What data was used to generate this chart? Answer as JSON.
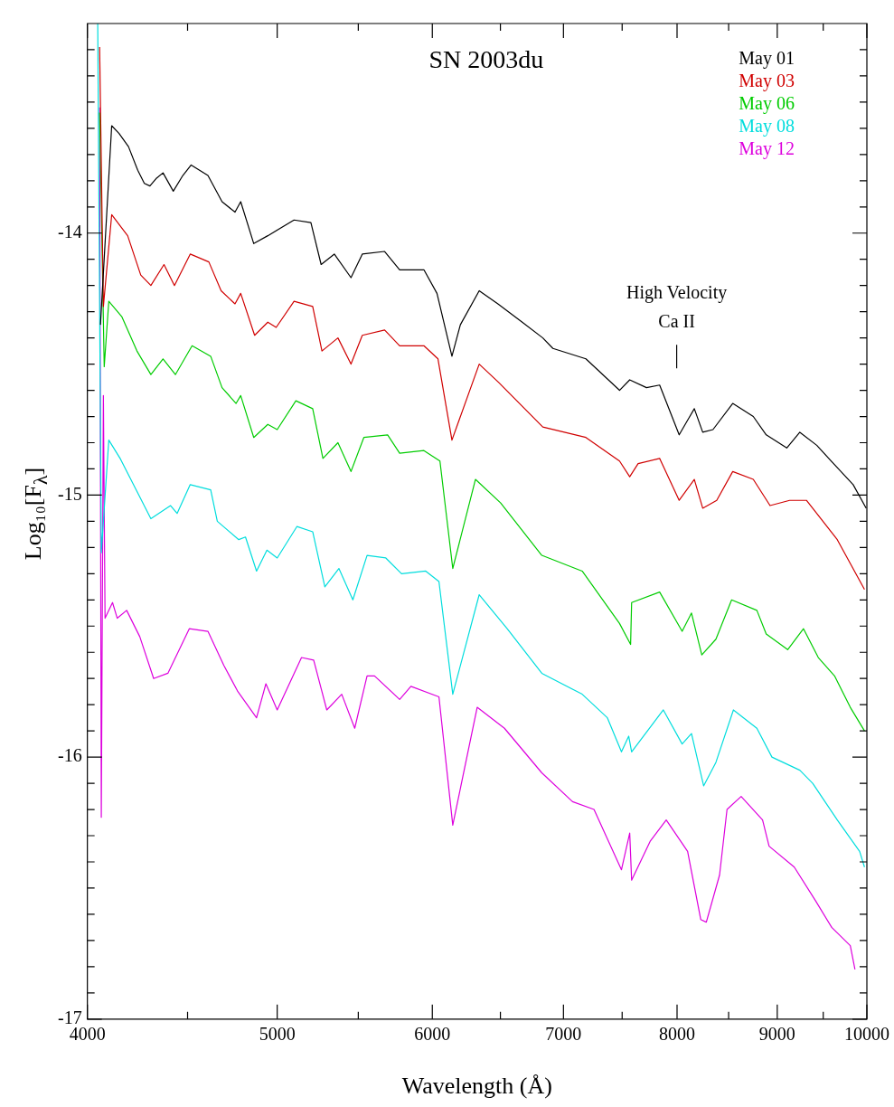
{
  "chart_data": {
    "type": "line",
    "title": "SN 2003du",
    "xlabel": "Wavelength (Å)",
    "ylabel": "Log₁₀[F$_{λ}$]",
    "log": "x",
    "legend": "top right",
    "xlim": [
      4000,
      10000
    ],
    "ylim": [
      -17,
      -13.2
    ],
    "xticks": [
      4000,
      {
        "value": 4500,
        "label": null
      },
      5000,
      {
        "value": 5500,
        "label": null
      },
      6000,
      {
        "value": 6500,
        "label": null
      },
      7000,
      {
        "value": 7500,
        "label": null
      },
      8000,
      {
        "value": 8500,
        "label": null
      },
      9000,
      {
        "value": 9500,
        "label": null
      },
      10000
    ],
    "yticks": [
      -17,
      {
        "value": -16.9,
        "label": null
      },
      {
        "value": -16.8,
        "label": null
      },
      {
        "value": -16.7,
        "label": null
      },
      {
        "value": -16.6,
        "label": null
      },
      {
        "value": -16.5,
        "label": null
      },
      {
        "value": -16.4,
        "label": null
      },
      {
        "value": -16.3,
        "label": null
      },
      {
        "value": -16.2,
        "label": null
      },
      {
        "value": -16.1,
        "label": null
      },
      -16,
      {
        "value": -15.9,
        "label": null
      },
      {
        "value": -15.8,
        "label": null
      },
      {
        "value": -15.7,
        "label": null
      },
      {
        "value": -15.6,
        "label": null
      },
      {
        "value": -15.5,
        "label": null
      },
      {
        "value": -15.4,
        "label": null
      },
      {
        "value": -15.3,
        "label": null
      },
      {
        "value": -15.2,
        "label": null
      },
      {
        "value": -15.1,
        "label": null
      },
      -15,
      {
        "value": -14.9,
        "label": null
      },
      {
        "value": -14.8,
        "label": null
      },
      {
        "value": -14.7,
        "label": null
      },
      {
        "value": -14.6,
        "label": null
      },
      {
        "value": -14.5,
        "label": null
      },
      {
        "value": -14.4,
        "label": null
      },
      {
        "value": -14.3,
        "label": null
      },
      {
        "value": -14.2,
        "label": null
      },
      {
        "value": -14.1,
        "label": null
      },
      -14,
      {
        "value": -13.9,
        "label": null
      },
      {
        "value": -13.8,
        "label": null
      },
      {
        "value": -13.7,
        "label": null
      },
      {
        "value": -13.6,
        "label": null
      },
      {
        "value": -13.5,
        "label": null
      },
      {
        "value": -13.4,
        "label": null
      },
      {
        "value": -13.3,
        "label": null
      }
    ],
    "annotations": [
      "High Velocity\nCa II"
    ],
    "series": [
      {
        "name": "May 01",
        "color": "#000000",
        "x": [
          4062,
          4116,
          4152,
          4198,
          4244,
          4277,
          4305,
          4339,
          4372,
          4425,
          4475,
          4519,
          4609,
          4686,
          4758,
          4790,
          4864,
          4945,
          5100,
          5202,
          5265,
          5347,
          5453,
          5526,
          5673,
          5774,
          5941,
          6033,
          6140,
          6201,
          6340,
          6481,
          6669,
          6832,
          6914,
          7187,
          7477,
          7567,
          7718,
          7838,
          8020,
          8164,
          8245,
          8345,
          8541,
          8750,
          8884,
          9101,
          9242,
          9428,
          9616,
          9840,
          9992
        ],
        "values": [
          -14.35,
          -13.59,
          -13.62,
          -13.67,
          -13.76,
          -13.81,
          -13.82,
          -13.79,
          -13.77,
          -13.84,
          -13.78,
          -13.74,
          -13.78,
          -13.88,
          -13.92,
          -13.88,
          -14.04,
          -14.01,
          -13.95,
          -13.96,
          -14.12,
          -14.08,
          -14.17,
          -14.08,
          -14.07,
          -14.14,
          -14.14,
          -14.23,
          -14.47,
          -14.35,
          -14.22,
          -14.27,
          -14.34,
          -14.4,
          -14.44,
          -14.48,
          -14.6,
          -14.56,
          -14.59,
          -14.58,
          -14.77,
          -14.67,
          -14.76,
          -14.75,
          -14.65,
          -14.7,
          -14.77,
          -14.82,
          -14.76,
          -14.81,
          -14.88,
          -14.96,
          -15.05
        ]
      },
      {
        "name": "May 03",
        "color": "#d00000",
        "x": [
          4058,
          4076,
          4116,
          4194,
          4259,
          4310,
          4377,
          4431,
          4514,
          4614,
          4681,
          4758,
          4790,
          4869,
          4945,
          4994,
          5100,
          5213,
          5270,
          5370,
          5453,
          5526,
          5673,
          5774,
          5941,
          6040,
          6140,
          6340,
          6487,
          6832,
          7187,
          7477,
          7567,
          7642,
          7838,
          8020,
          8164,
          8245,
          8382,
          8541,
          8750,
          8924,
          9132,
          9314,
          9658,
          9972
        ],
        "values": [
          -13.29,
          -14.28,
          -13.93,
          -14.01,
          -14.16,
          -14.2,
          -14.12,
          -14.2,
          -14.08,
          -14.11,
          -14.22,
          -14.27,
          -14.23,
          -14.39,
          -14.34,
          -14.36,
          -14.26,
          -14.28,
          -14.45,
          -14.4,
          -14.5,
          -14.39,
          -14.37,
          -14.43,
          -14.43,
          -14.48,
          -14.79,
          -14.5,
          -14.57,
          -14.74,
          -14.78,
          -14.87,
          -14.93,
          -14.88,
          -14.86,
          -15.02,
          -14.94,
          -15.05,
          -15.02,
          -14.91,
          -14.94,
          -15.04,
          -15.02,
          -15.02,
          -15.17,
          -15.36
        ]
      },
      {
        "name": "May 06",
        "color": "#00cc00",
        "x": [
          4058,
          4080,
          4102,
          4166,
          4240,
          4310,
          4372,
          4436,
          4524,
          4624,
          4686,
          4764,
          4790,
          4864,
          4945,
          5000,
          5111,
          5213,
          5276,
          5370,
          5453,
          5536,
          5693,
          5774,
          5941,
          6054,
          6146,
          6312,
          6502,
          6824,
          7156,
          7477,
          7575,
          7584,
          7838,
          8048,
          8137,
          8236,
          8374,
          8530,
          8787,
          8884,
          9111,
          9282,
          9445,
          9627,
          9807,
          9972
        ],
        "values": [
          -13.54,
          -14.51,
          -14.26,
          -14.32,
          -14.45,
          -14.54,
          -14.48,
          -14.54,
          -14.43,
          -14.47,
          -14.59,
          -14.65,
          -14.62,
          -14.78,
          -14.73,
          -14.75,
          -14.64,
          -14.67,
          -14.86,
          -14.8,
          -14.91,
          -14.78,
          -14.77,
          -14.84,
          -14.83,
          -14.87,
          -15.28,
          -14.94,
          -15.03,
          -15.23,
          -15.29,
          -15.49,
          -15.57,
          -15.41,
          -15.37,
          -15.52,
          -15.45,
          -15.61,
          -15.55,
          -15.4,
          -15.44,
          -15.53,
          -15.59,
          -15.51,
          -15.62,
          -15.69,
          -15.81,
          -15.9
        ]
      },
      {
        "name": "May 08",
        "color": "#00dddd",
        "x": [
          4049,
          4066,
          4102,
          4157,
          4310,
          4411,
          4445,
          4514,
          4624,
          4660,
          4779,
          4817,
          4880,
          4940,
          5000,
          5117,
          5213,
          5288,
          5376,
          5465,
          5557,
          5681,
          5787,
          5954,
          6047,
          6146,
          6340,
          6552,
          6824,
          7156,
          7371,
          7494,
          7558,
          7584,
          7872,
          8048,
          8137,
          8254,
          8374,
          8548,
          8787,
          8944,
          9242,
          9383,
          9658,
          9915,
          9972
        ],
        "values": [
          -13.2,
          -15.22,
          -14.79,
          -14.86,
          -15.09,
          -15.04,
          -15.07,
          -14.96,
          -14.98,
          -15.1,
          -15.17,
          -15.16,
          -15.29,
          -15.21,
          -15.24,
          -15.12,
          -15.14,
          -15.35,
          -15.28,
          -15.4,
          -15.23,
          -15.24,
          -15.3,
          -15.29,
          -15.33,
          -15.76,
          -15.38,
          -15.51,
          -15.68,
          -15.76,
          -15.85,
          -15.98,
          -15.92,
          -15.98,
          -15.82,
          -15.95,
          -15.91,
          -16.11,
          -16.02,
          -15.82,
          -15.89,
          -16,
          -16.05,
          -16.1,
          -16.24,
          -16.36,
          -16.42
        ]
      },
      {
        "name": "May 12",
        "color": "#dd00dd",
        "x": [
          4058,
          4066,
          4076,
          4084,
          4120,
          4143,
          4189,
          4254,
          4324,
          4397,
          4509,
          4609,
          4696,
          4774,
          4880,
          4934,
          5000,
          5145,
          5219,
          5300,
          5394,
          5477,
          5557,
          5606,
          5774,
          5851,
          6047,
          6146,
          6325,
          6531,
          6824,
          7075,
          7256,
          7494,
          7567,
          7584,
          7753,
          7899,
          8100,
          8226,
          8280,
          8410,
          8484,
          8626,
          8846,
          8914,
          9182,
          9417,
          9595,
          9807,
          9861
        ],
        "values": [
          -13.52,
          -16.23,
          -14.62,
          -15.47,
          -15.41,
          -15.47,
          -15.44,
          -15.54,
          -15.7,
          -15.68,
          -15.51,
          -15.52,
          -15.65,
          -15.75,
          -15.85,
          -15.72,
          -15.82,
          -15.62,
          -15.63,
          -15.82,
          -15.76,
          -15.89,
          -15.69,
          -15.69,
          -15.78,
          -15.73,
          -15.77,
          -16.26,
          -15.81,
          -15.89,
          -16.06,
          -16.17,
          -16.2,
          -16.43,
          -16.29,
          -16.47,
          -16.32,
          -16.24,
          -16.36,
          -16.62,
          -16.63,
          -16.45,
          -16.2,
          -16.15,
          -16.24,
          -16.34,
          -16.42,
          -16.55,
          -16.65,
          -16.72,
          -16.81
        ]
      }
    ]
  }
}
